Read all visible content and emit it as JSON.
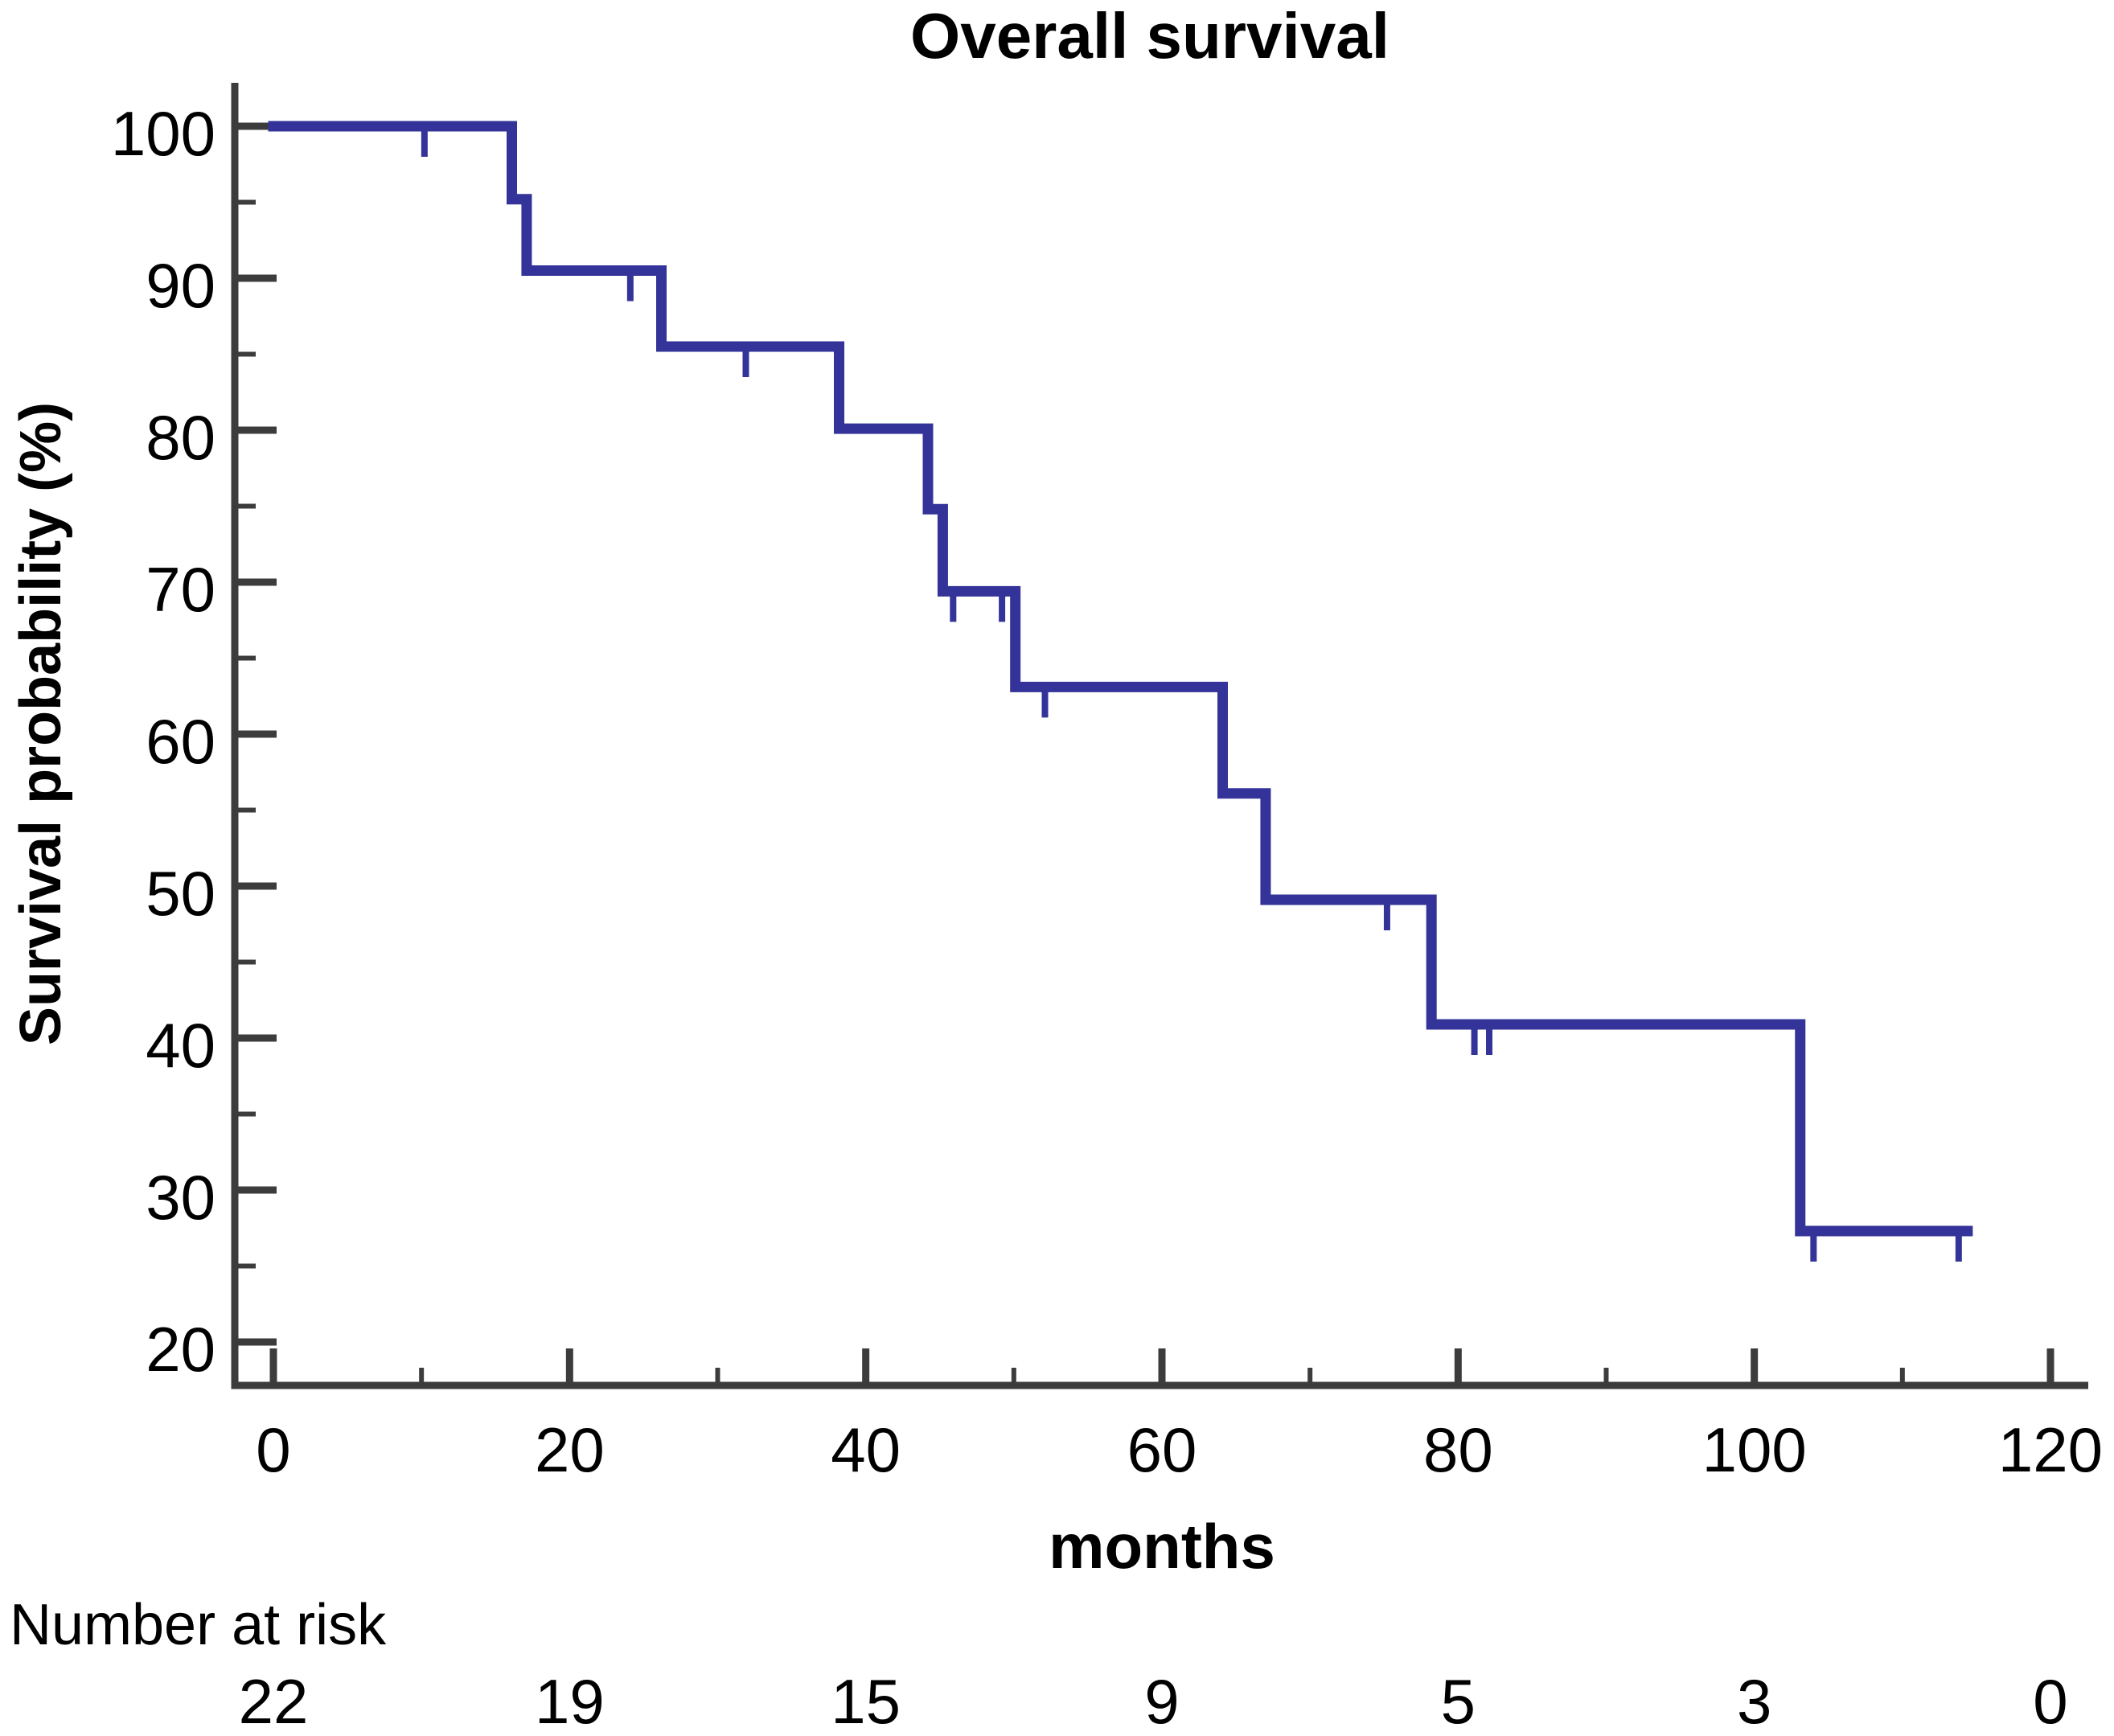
{
  "chart_data": {
    "type": "line",
    "subtype": "kaplan-meier-step",
    "title": "Overall survival",
    "xlabel": "months",
    "ylabel": "Survival probability (%)",
    "xlim": [
      0,
      120
    ],
    "ylim": [
      20,
      100
    ],
    "grid": false,
    "legend": "none",
    "x_major_ticks": [
      0,
      20,
      40,
      60,
      80,
      100,
      120
    ],
    "x_minor_ticks": [
      10,
      30,
      50,
      70,
      90,
      110
    ],
    "y_major_ticks": [
      100,
      90,
      80,
      70,
      60,
      50,
      40,
      30,
      20
    ],
    "y_minor_ticks": [
      95,
      85,
      75,
      65,
      55,
      45,
      35,
      25
    ],
    "series": [
      {
        "name": "Overall survival",
        "color": "#333399",
        "steps": [
          {
            "from": 0,
            "to": 16.1,
            "surv": 100
          },
          {
            "from": 16.1,
            "to": 17.1,
            "surv": 95.2
          },
          {
            "from": 17.1,
            "to": 26.2,
            "surv": 90.5
          },
          {
            "from": 26.2,
            "to": 38.2,
            "surv": 85.5
          },
          {
            "from": 38.2,
            "to": 44.2,
            "surv": 80.1
          },
          {
            "from": 44.2,
            "to": 45.2,
            "surv": 74.8
          },
          {
            "from": 45.2,
            "to": 50.1,
            "surv": 69.4
          },
          {
            "from": 50.1,
            "to": 64.1,
            "surv": 63.1
          },
          {
            "from": 64.1,
            "to": 67.0,
            "surv": 56.1
          },
          {
            "from": 67.0,
            "to": 78.2,
            "surv": 49.1
          },
          {
            "from": 78.2,
            "to": 103.1,
            "surv": 40.9
          },
          {
            "from": 103.1,
            "to": 114.4,
            "surv": 27.3
          }
        ],
        "censor_marks": [
          {
            "t": 10.2,
            "surv": 100
          },
          {
            "t": 24.1,
            "surv": 90.5
          },
          {
            "t": 31.9,
            "surv": 85.5
          },
          {
            "t": 45.9,
            "surv": 69.4
          },
          {
            "t": 49.2,
            "surv": 69.4
          },
          {
            "t": 52.1,
            "surv": 63.1
          },
          {
            "t": 75.2,
            "surv": 49.1
          },
          {
            "t": 81.1,
            "surv": 40.9
          },
          {
            "t": 82.1,
            "surv": 40.9
          },
          {
            "t": 104.0,
            "surv": 27.3
          },
          {
            "t": 113.8,
            "surv": 27.3
          }
        ]
      }
    ]
  },
  "risk_table": {
    "label": "Number at risk",
    "times": [
      0,
      20,
      40,
      60,
      80,
      100,
      120
    ],
    "counts": [
      22,
      19,
      15,
      9,
      5,
      3,
      0
    ]
  },
  "colors": {
    "curve": "#333399",
    "axis": "#3C3C3C",
    "text": "#000000",
    "risk_label": "#00008B",
    "background": "#FFFFFF"
  }
}
